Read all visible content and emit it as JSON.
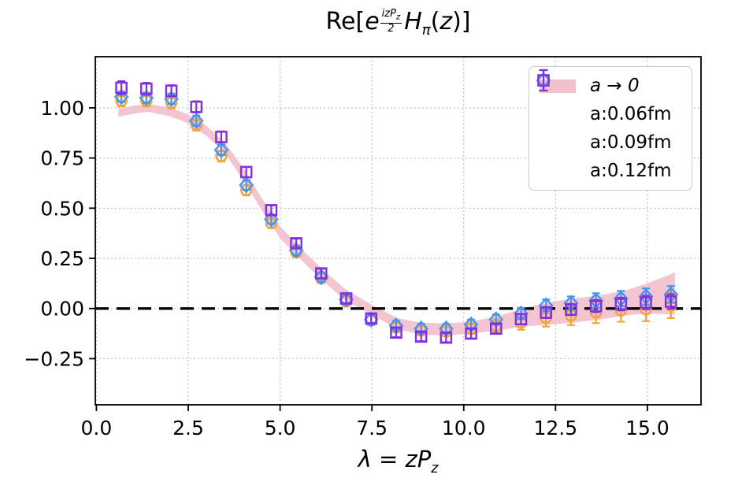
{
  "title_parts": {
    "prefix": "Re[",
    "base": "e",
    "exp_num": "izP",
    "exp_num_sub": "z",
    "exp_den": "2",
    "func": "H",
    "func_sub": "π",
    "arg_open": "(",
    "arg": "z",
    "suffix": ")]"
  },
  "xlabel_parts": {
    "main": "λ = zP",
    "sub": "z"
  },
  "legend": {
    "items": [
      {
        "label": "a → 0",
        "type": "band",
        "color": "#f2c1cd"
      },
      {
        "label": "a:0.06fm",
        "type": "circle",
        "color": "#f2a43a"
      },
      {
        "label": "a:0.09fm",
        "type": "diamond",
        "color": "#4a94f0"
      },
      {
        "label": "a:0.12fm",
        "type": "square",
        "color": "#8130e0"
      }
    ]
  },
  "chart_data": {
    "type": "scatter",
    "title": "Re[e^(izP_z/2) H_π(z)]",
    "xlabel": "λ = zP_z",
    "xlim": [
      -0.03,
      16.46
    ],
    "ylim": [
      -0.48,
      1.255
    ],
    "grid": true,
    "grid_color": "#bfbfbf",
    "axis_color": "#000000",
    "x_tick_values": [
      0,
      2.5,
      5,
      7.5,
      10,
      12.5,
      15
    ],
    "x_tick_labels": [
      "0.0",
      "2.5",
      "5.0",
      "7.5",
      "10.0",
      "12.5",
      "15.0"
    ],
    "y_tick_values": [
      1.0,
      0.75,
      0.5,
      0.25,
      0.0,
      -0.25
    ],
    "y_tick_labels": [
      "1.00",
      "0.75",
      "0.50",
      "0.25",
      "0.00",
      "−0.25"
    ],
    "zero_line_y": 0,
    "band": {
      "name": "a → 0",
      "color": "#f2c1cd",
      "x": [
        0.6,
        1.0,
        1.4,
        2.0,
        2.5,
        3.0,
        3.5,
        4.0,
        4.5,
        5.0,
        5.6,
        6.2,
        6.8,
        7.5,
        8.2,
        8.8,
        9.5,
        10.2,
        10.9,
        11.6,
        12.3,
        13.0,
        13.7,
        14.4,
        15.0,
        15.75
      ],
      "upper": [
        0.995,
        1.01,
        1.02,
        1.002,
        0.967,
        0.91,
        0.827,
        0.7,
        0.55,
        0.41,
        0.293,
        0.188,
        0.093,
        0.018,
        -0.048,
        -0.07,
        -0.075,
        -0.065,
        -0.04,
        0.0,
        0.03,
        0.05,
        0.065,
        0.09,
        0.125,
        0.18
      ],
      "lower": [
        0.955,
        0.97,
        0.98,
        0.958,
        0.923,
        0.86,
        0.773,
        0.64,
        0.49,
        0.35,
        0.237,
        0.132,
        0.037,
        -0.032,
        -0.102,
        -0.13,
        -0.135,
        -0.125,
        -0.11,
        -0.09,
        -0.08,
        -0.07,
        -0.055,
        -0.034,
        -0.025,
        -0.03
      ]
    },
    "series": [
      {
        "name": "a:0.06fm",
        "marker": "circle",
        "color": "#f2a43a",
        "x": [
          0.68,
          1.36,
          2.04,
          2.72,
          3.4,
          4.08,
          4.76,
          5.44,
          6.12,
          6.8,
          7.48,
          8.16,
          8.84,
          9.52,
          10.2,
          10.88,
          11.56,
          12.24,
          12.92,
          13.6,
          14.28,
          14.96,
          15.64
        ],
        "y": [
          1.035,
          1.035,
          1.025,
          0.915,
          0.76,
          0.59,
          0.425,
          0.28,
          0.15,
          0.035,
          -0.06,
          -0.095,
          -0.11,
          -0.115,
          -0.1,
          -0.085,
          -0.07,
          -0.047,
          -0.035,
          -0.02,
          -0.01,
          -0.005,
          0.015
        ],
        "err": [
          0.02,
          0.02,
          0.02,
          0.02,
          0.02,
          0.018,
          0.015,
          0.015,
          0.015,
          0.015,
          0.015,
          0.015,
          0.015,
          0.015,
          0.018,
          0.022,
          0.028,
          0.035,
          0.04,
          0.045,
          0.048,
          0.05,
          0.055
        ]
      },
      {
        "name": "a:0.09fm",
        "marker": "diamond",
        "color": "#4a94f0",
        "x": [
          0.68,
          1.36,
          2.04,
          2.72,
          3.4,
          4.08,
          4.76,
          5.44,
          6.12,
          6.8,
          7.48,
          8.16,
          8.84,
          9.52,
          10.2,
          10.88,
          11.56,
          12.24,
          12.92,
          13.6,
          14.28,
          14.96,
          15.64
        ],
        "y": [
          1.055,
          1.05,
          1.045,
          0.935,
          0.79,
          0.615,
          0.445,
          0.29,
          0.157,
          0.045,
          -0.055,
          -0.085,
          -0.1,
          -0.1,
          -0.08,
          -0.055,
          -0.025,
          0.015,
          0.027,
          0.04,
          0.05,
          0.06,
          0.07
        ],
        "err": [
          0.018,
          0.018,
          0.018,
          0.018,
          0.018,
          0.016,
          0.015,
          0.015,
          0.015,
          0.015,
          0.015,
          0.015,
          0.015,
          0.015,
          0.016,
          0.018,
          0.02,
          0.022,
          0.025,
          0.028,
          0.03,
          0.032,
          0.034
        ]
      },
      {
        "name": "a:0.12fm",
        "marker": "square",
        "color": "#8130e0",
        "x": [
          0.68,
          1.36,
          2.04,
          2.72,
          3.4,
          4.08,
          4.76,
          5.44,
          6.12,
          6.8,
          7.48,
          8.16,
          8.84,
          9.52,
          10.2,
          10.88,
          11.56,
          12.24,
          12.92,
          13.6,
          14.28,
          14.96,
          15.64
        ],
        "y": [
          1.1,
          1.095,
          1.085,
          1.005,
          0.855,
          0.68,
          0.49,
          0.325,
          0.175,
          0.05,
          -0.05,
          -0.12,
          -0.14,
          -0.145,
          -0.125,
          -0.1,
          -0.053,
          -0.02,
          -0.005,
          0.012,
          0.022,
          0.03,
          0.035
        ],
        "err": [
          0.025,
          0.022,
          0.02,
          0.02,
          0.02,
          0.018,
          0.016,
          0.015,
          0.015,
          0.015,
          0.015,
          0.015,
          0.015,
          0.015,
          0.016,
          0.016,
          0.018,
          0.02,
          0.02,
          0.022,
          0.024,
          0.026,
          0.028
        ]
      }
    ]
  }
}
